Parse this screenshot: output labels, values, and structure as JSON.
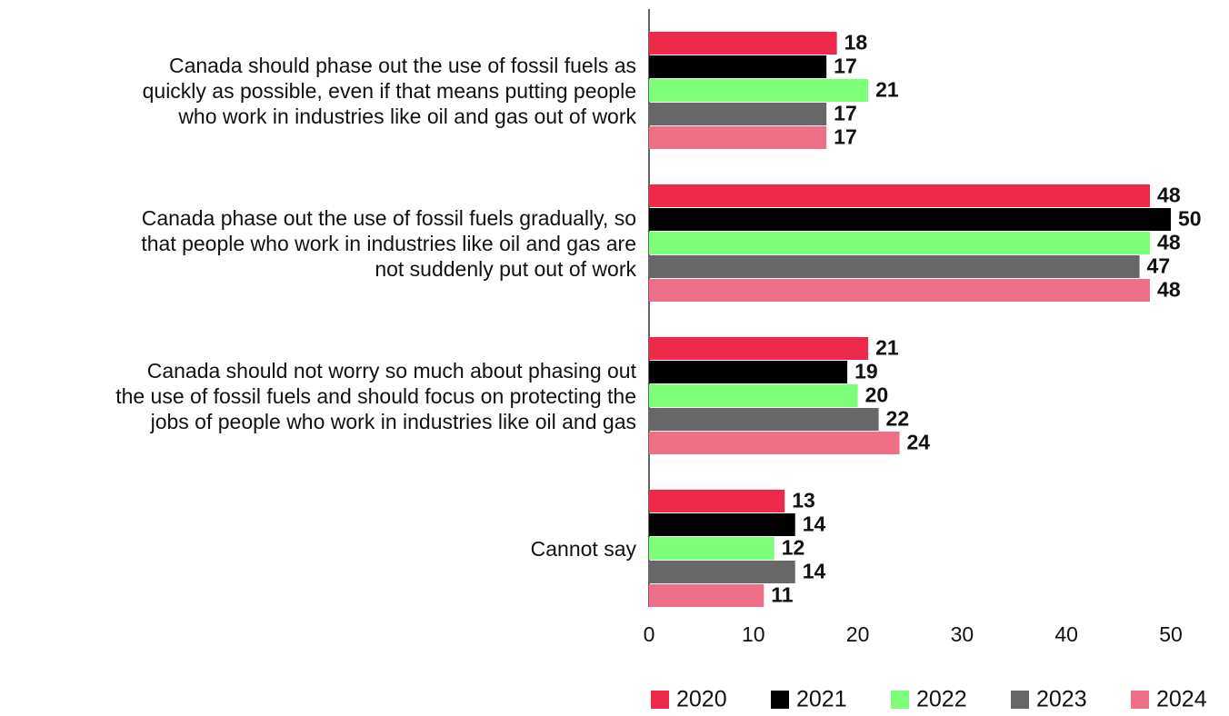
{
  "chart_data": {
    "type": "bar",
    "orientation": "horizontal",
    "categories": [
      "Canada should phase out the use of fossil fuels as\nquickly as possible, even if that means putting people\nwho work in industries like oil and gas out of work",
      "Canada phase out the use of fossil fuels gradually, so\nthat people who work in industries like oil and gas are\nnot suddenly put out of work",
      "Canada should not worry so much about phasing out\nthe use of fossil fuels and should focus on protecting the\njobs of people who work in industries like oil and gas",
      "Cannot say"
    ],
    "series": [
      {
        "name": "2020",
        "color": "#ee2a4b",
        "values": [
          18,
          48,
          21,
          13
        ]
      },
      {
        "name": "2021",
        "color": "#000000",
        "values": [
          17,
          50,
          19,
          14
        ]
      },
      {
        "name": "2022",
        "color": "#7dff7a",
        "values": [
          21,
          48,
          20,
          12
        ]
      },
      {
        "name": "2023",
        "color": "#676767",
        "values": [
          17,
          47,
          22,
          14
        ]
      },
      {
        "name": "2024",
        "color": "#ee7088",
        "values": [
          17,
          48,
          24,
          11
        ]
      }
    ],
    "xlim": [
      0,
      50
    ],
    "xticks": [
      0,
      10,
      20,
      30,
      40,
      50
    ],
    "grid": false,
    "legend": "bottom"
  }
}
